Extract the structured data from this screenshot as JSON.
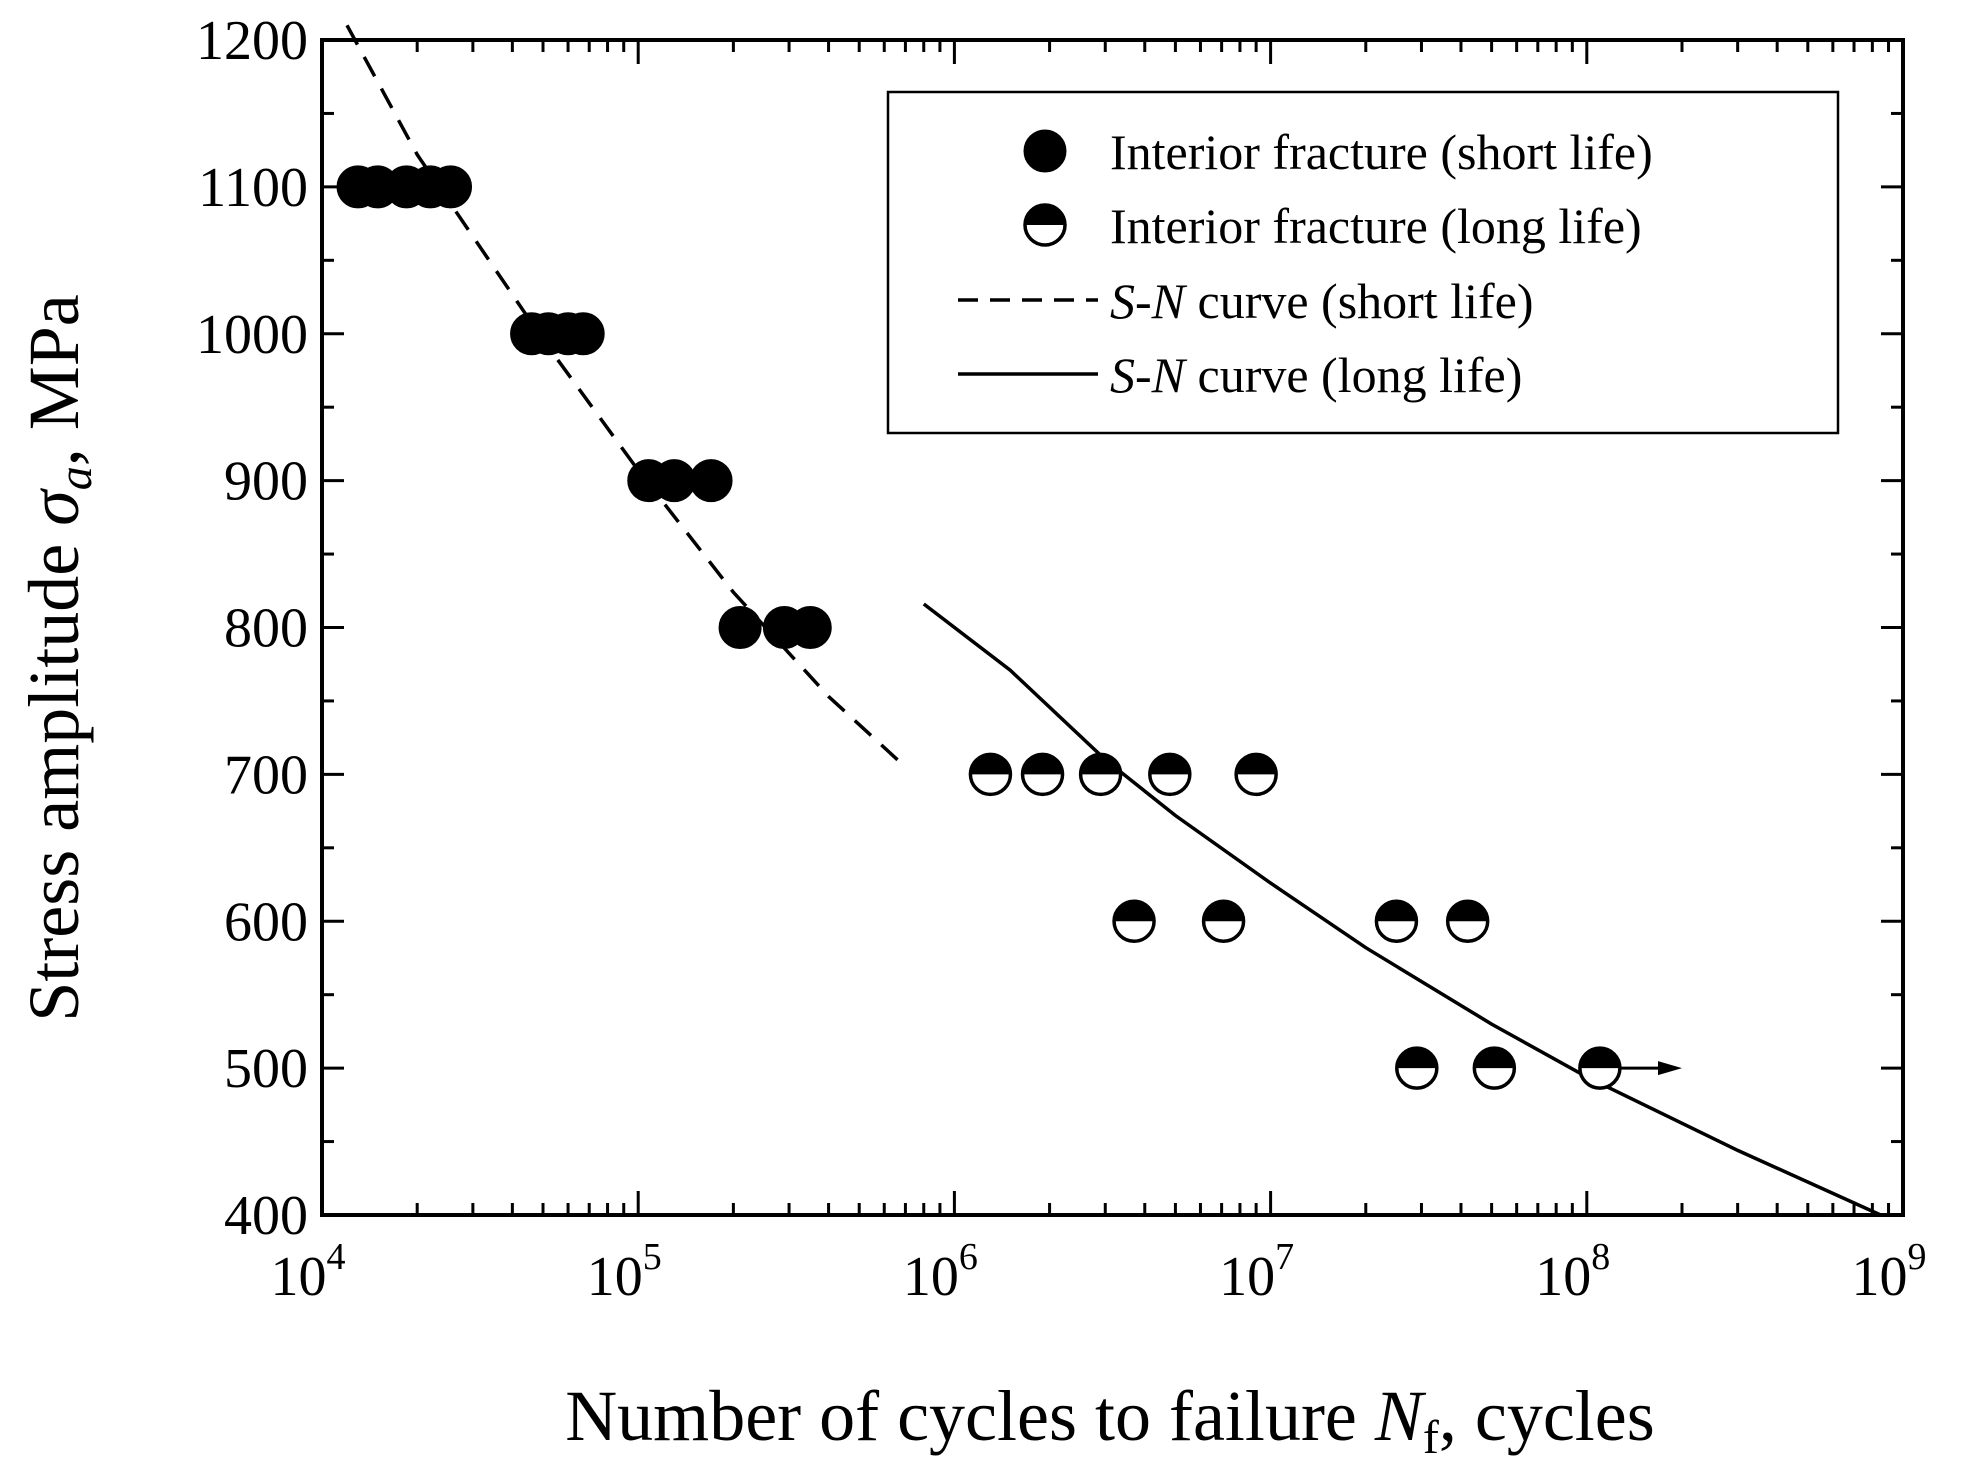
{
  "chart_data": {
    "type": "scatter",
    "title": "",
    "xlabel": {
      "pre": "Number of cycles to failure ",
      "var": "N",
      "sub": "f",
      "post": ", cycles"
    },
    "ylabel": {
      "pre": "Stress amplitude ",
      "var": "σ",
      "sub": "a",
      "post": ", MPa"
    },
    "x_scale": "log",
    "xlim": [
      10000,
      1000000000
    ],
    "ylim": [
      400,
      1200
    ],
    "x_ticks": [
      {
        "base": "10",
        "exp": "4",
        "value": 10000
      },
      {
        "base": "10",
        "exp": "5",
        "value": 100000
      },
      {
        "base": "10",
        "exp": "6",
        "value": 1000000
      },
      {
        "base": "10",
        "exp": "7",
        "value": 10000000
      },
      {
        "base": "10",
        "exp": "8",
        "value": 100000000
      },
      {
        "base": "10",
        "exp": "9",
        "value": 1000000000
      }
    ],
    "y_ticks": [
      "400",
      "500",
      "600",
      "700",
      "800",
      "900",
      "1000",
      "1100",
      "1200"
    ],
    "series": [
      {
        "name": "Interior fracture (short life)",
        "kind": "scatter",
        "marker": "filled-circle",
        "points": [
          [
            13000,
            1100
          ],
          [
            15000,
            1100
          ],
          [
            18500,
            1100
          ],
          [
            22000,
            1100
          ],
          [
            25500,
            1100
          ],
          [
            46000,
            1000
          ],
          [
            52000,
            1000
          ],
          [
            60000,
            1000
          ],
          [
            67000,
            1000
          ],
          [
            108000,
            900
          ],
          [
            130000,
            900
          ],
          [
            170000,
            900
          ],
          [
            210000,
            800
          ],
          [
            290000,
            800
          ],
          [
            350000,
            800
          ]
        ]
      },
      {
        "name": "Interior fracture (long life)",
        "kind": "scatter",
        "marker": "half-filled-circle",
        "points": [
          [
            1300000,
            700
          ],
          [
            1900000,
            700
          ],
          [
            2900000,
            700
          ],
          [
            4800000,
            700
          ],
          [
            9000000,
            700
          ],
          [
            3700000,
            600
          ],
          [
            7100000,
            600
          ],
          [
            25000000,
            600
          ],
          [
            42000000,
            600
          ],
          [
            29000000,
            500
          ],
          [
            51000000,
            500
          ],
          [
            110000000,
            500
          ]
        ],
        "runout": {
          "from": [
            110000000,
            500
          ],
          "to": [
            200000000,
            500
          ]
        }
      },
      {
        "name_var": "S",
        "name_dash": "-",
        "name_var2": "N",
        "name_rest": " curve (short life)",
        "kind": "line",
        "style": "dashed",
        "points": [
          [
            12000,
            1210
          ],
          [
            20000,
            1122
          ],
          [
            50000,
            996
          ],
          [
            100000,
            907
          ],
          [
            200000,
            824
          ],
          [
            400000,
            753
          ],
          [
            700000,
            705
          ]
        ]
      },
      {
        "name_var": "S",
        "name_dash": "-",
        "name_var2": "N",
        "name_rest": " curve (long life)",
        "kind": "line",
        "style": "solid",
        "points": [
          [
            800000,
            816
          ],
          [
            1500000,
            771
          ],
          [
            3000000,
            710
          ],
          [
            5000000,
            672
          ],
          [
            10000000,
            626
          ],
          [
            20000000,
            582
          ],
          [
            50000000,
            530
          ],
          [
            100000000,
            494
          ],
          [
            300000000,
            444
          ],
          [
            850000000,
            400
          ]
        ]
      }
    ],
    "legend_position": "top-right",
    "grid": false
  }
}
